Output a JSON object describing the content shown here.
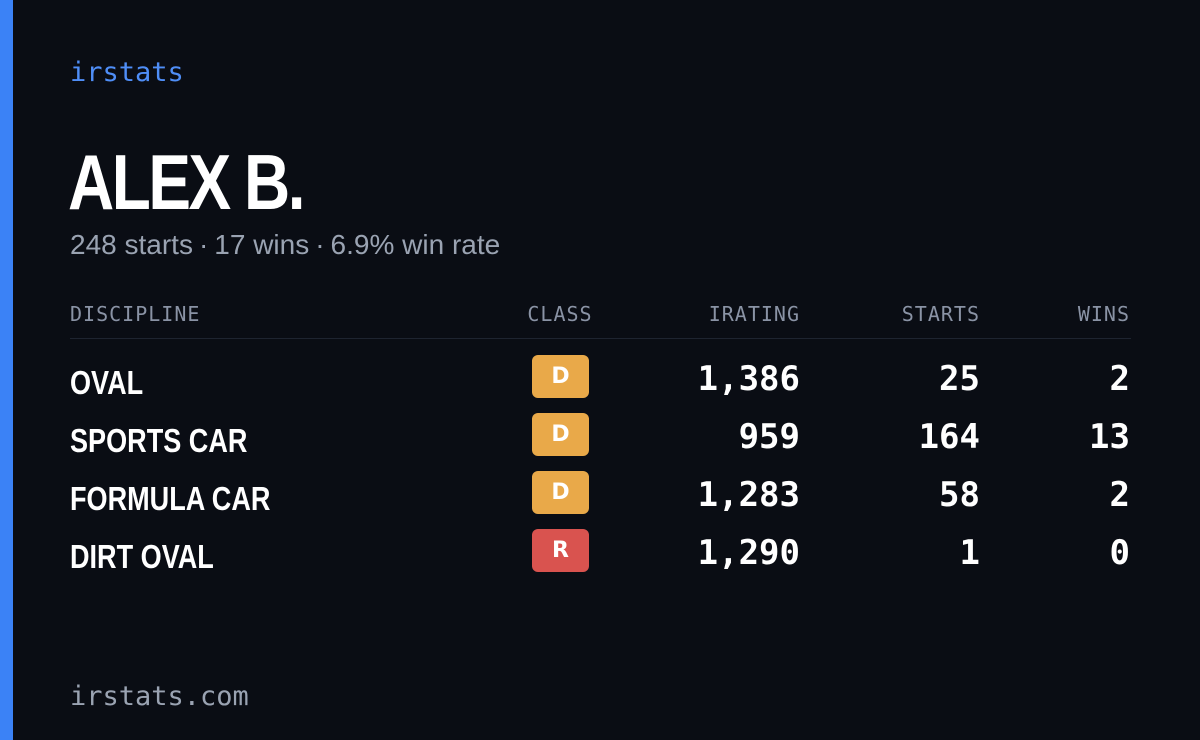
{
  "brand": "irstats",
  "driver_name": "ALEX B.",
  "summary": {
    "starts": "248 starts",
    "wins": "17 wins",
    "win_rate": "6.9% win rate",
    "separator": "·"
  },
  "table": {
    "headers": {
      "discipline": "DISCIPLINE",
      "class": "CLASS",
      "irating": "IRATING",
      "starts": "STARTS",
      "wins": "WINS"
    },
    "rows": [
      {
        "discipline": "OVAL",
        "class": "D",
        "class_color": "#e9a949",
        "irating": "1,386",
        "starts": "25",
        "wins": "2"
      },
      {
        "discipline": "SPORTS CAR",
        "class": "D",
        "class_color": "#e9a949",
        "irating": "959",
        "starts": "164",
        "wins": "13"
      },
      {
        "discipline": "FORMULA CAR",
        "class": "D",
        "class_color": "#e9a949",
        "irating": "1,283",
        "starts": "58",
        "wins": "2"
      },
      {
        "discipline": "DIRT OVAL",
        "class": "R",
        "class_color": "#d9534f",
        "irating": "1,290",
        "starts": "1",
        "wins": "0"
      }
    ]
  },
  "footer": "irstats.com",
  "colors": {
    "accent": "#3b82f6",
    "background": "#0a0d14",
    "class_d": "#e9a949",
    "class_r": "#d9534f"
  }
}
